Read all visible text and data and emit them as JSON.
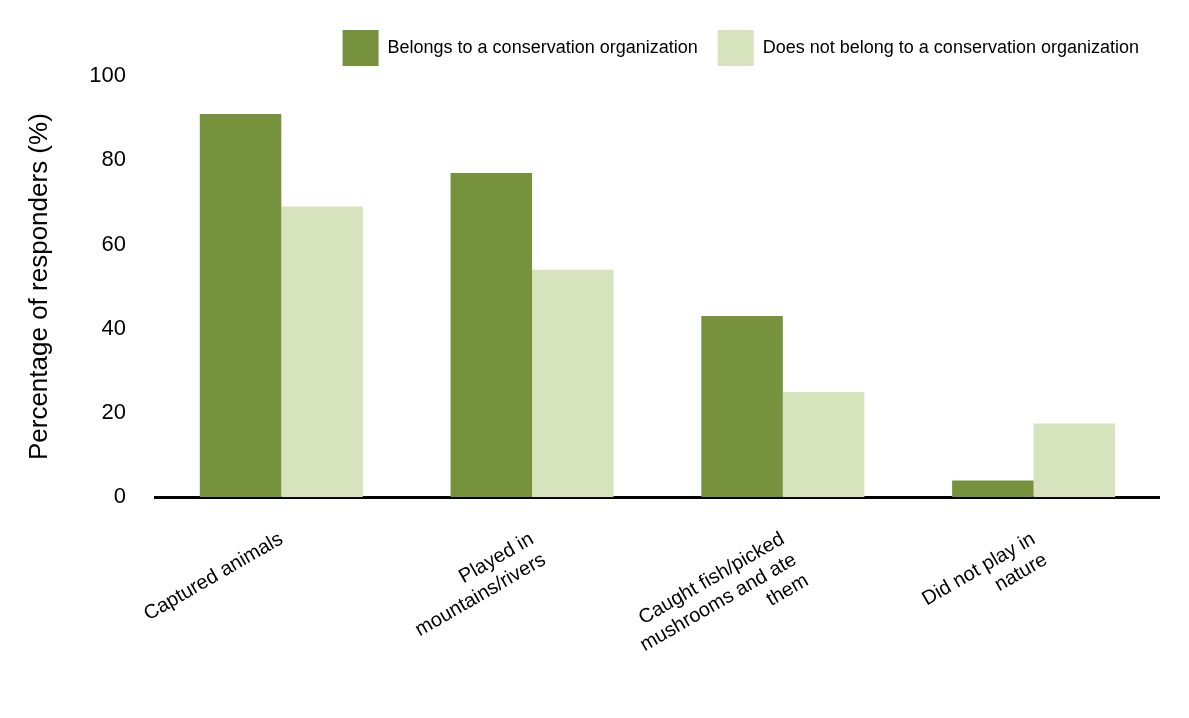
{
  "chart_data": {
    "type": "bar",
    "ylabel": "Percentage of responders (%)",
    "categories": [
      "Captured animals",
      "Played in mountains/rivers",
      "Caught fish/picked mushrooms and ate them",
      "Did not play in nature"
    ],
    "series": [
      {
        "name": "Belongs to a conservation organization",
        "color": "#76923c",
        "values": [
          91,
          77,
          43,
          4
        ]
      },
      {
        "name": "Does not belong to a conservation organization",
        "color": "#d6e3bc",
        "values": [
          69,
          54,
          25,
          17.5
        ]
      }
    ],
    "ylim": [
      0,
      100
    ],
    "yticks": [
      0,
      20,
      40,
      60,
      80,
      100
    ],
    "grid": false,
    "legend": "top right"
  }
}
